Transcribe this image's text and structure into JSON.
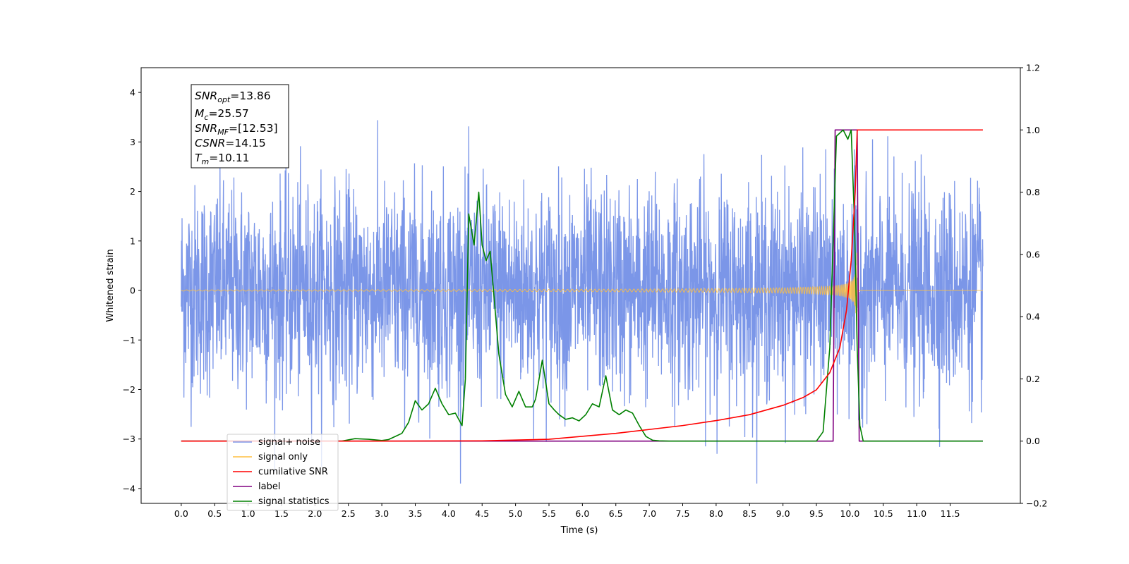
{
  "chart_data": {
    "type": "line",
    "title": "",
    "xlabel": "Time (s)",
    "ylabel": "Whitened strain",
    "xlim": [
      -0.6,
      12.55
    ],
    "ylim": [
      -4.3,
      4.5
    ],
    "y2lim": [
      -0.2,
      1.2
    ],
    "grid": false,
    "legend_position": "bottom-left",
    "x_ticks": [
      "0.0",
      "0.5",
      "1.0",
      "1.5",
      "2.0",
      "2.5",
      "3.0",
      "3.5",
      "4.0",
      "4.5",
      "5.0",
      "5.5",
      "6.0",
      "6.5",
      "7.0",
      "7.5",
      "8.0",
      "8.5",
      "9.0",
      "9.5",
      "10.0",
      "10.5",
      "11.0",
      "11.5"
    ],
    "y_ticks": [
      "4",
      "3",
      "2",
      "1",
      "0",
      "−1",
      "−2",
      "−3",
      "−4"
    ],
    "y2_ticks": [
      "1.2",
      "1.0",
      "0.8",
      "0.6",
      "0.4",
      "0.2",
      "0.0",
      "−0.2"
    ],
    "annotation": {
      "snr_opt": {
        "var": "SNR",
        "sub": "opt",
        "value": "=13.86"
      },
      "mc": {
        "var": "M",
        "sub": "c",
        "value": "=25.57"
      },
      "snr_mf": {
        "var": "SNR",
        "sub": "MF",
        "value": "=[12.53]"
      },
      "csnr": {
        "var": "CSNR",
        "sub": "",
        "value": "=14.15"
      },
      "tm": {
        "var": "T",
        "sub": "m",
        "value": "=10.11"
      }
    },
    "series": [
      {
        "name": "signal+ noise",
        "color": "#7b96e8",
        "axis": "left",
        "noise_std": 1.0,
        "noise_max": 4.1,
        "noise_min": -3.9,
        "x_range": [
          0.0,
          11.99
        ]
      },
      {
        "name": "signal only",
        "color": "#ffbf40",
        "axis": "left",
        "chirp_peak_time": 10.11,
        "chirp_peak_amplitude": 1.3,
        "x_range": [
          0.0,
          11.99
        ]
      },
      {
        "name": "cumilative SNR",
        "color": "#ff0000",
        "axis": "right",
        "x": [
          0.0,
          3.0,
          4.5,
          5.5,
          6.5,
          7.5,
          8.0,
          8.5,
          9.0,
          9.3,
          9.5,
          9.7,
          9.85,
          9.95,
          10.02,
          10.08,
          10.11,
          11.99
        ],
        "y": [
          0.0,
          0.0,
          0.001,
          0.006,
          0.025,
          0.05,
          0.066,
          0.085,
          0.115,
          0.14,
          0.165,
          0.22,
          0.3,
          0.42,
          0.58,
          0.8,
          1.0,
          1.0
        ]
      },
      {
        "name": "label",
        "color": "#800080",
        "axis": "right",
        "x": [
          0.0,
          9.75,
          9.78,
          10.11,
          10.14,
          11.99
        ],
        "y": [
          0.0,
          0.0,
          1.0,
          1.0,
          0.0,
          0.0
        ]
      },
      {
        "name": "signal statistics",
        "color": "#008000",
        "axis": "right",
        "x": [
          0.0,
          2.4,
          2.6,
          2.8,
          3.0,
          3.1,
          3.2,
          3.3,
          3.4,
          3.5,
          3.6,
          3.7,
          3.8,
          3.9,
          4.0,
          4.1,
          4.2,
          4.25,
          4.3,
          4.38,
          4.45,
          4.5,
          4.56,
          4.62,
          4.68,
          4.75,
          4.85,
          4.95,
          5.05,
          5.15,
          5.25,
          5.3,
          5.4,
          5.5,
          5.58,
          5.65,
          5.75,
          5.85,
          5.95,
          6.05,
          6.15,
          6.25,
          6.35,
          6.45,
          6.55,
          6.65,
          6.75,
          6.85,
          6.95,
          7.05,
          7.15,
          7.3,
          9.5,
          9.6,
          9.7,
          9.8,
          9.9,
          9.97,
          10.02,
          10.07,
          10.11,
          10.15,
          10.2,
          11.99
        ],
        "y": [
          0.0,
          0.0,
          0.008,
          0.006,
          0.002,
          0.005,
          0.015,
          0.025,
          0.06,
          0.13,
          0.1,
          0.12,
          0.17,
          0.12,
          0.085,
          0.09,
          0.05,
          0.2,
          0.73,
          0.63,
          0.8,
          0.63,
          0.58,
          0.61,
          0.46,
          0.28,
          0.15,
          0.11,
          0.16,
          0.11,
          0.11,
          0.135,
          0.26,
          0.12,
          0.1,
          0.085,
          0.07,
          0.075,
          0.065,
          0.085,
          0.12,
          0.11,
          0.21,
          0.1,
          0.085,
          0.1,
          0.09,
          0.05,
          0.015,
          0.003,
          0.001,
          0.0,
          0.0,
          0.03,
          0.3,
          0.98,
          1.0,
          0.97,
          1.0,
          0.7,
          0.3,
          0.05,
          0.0,
          0.0
        ]
      }
    ]
  }
}
